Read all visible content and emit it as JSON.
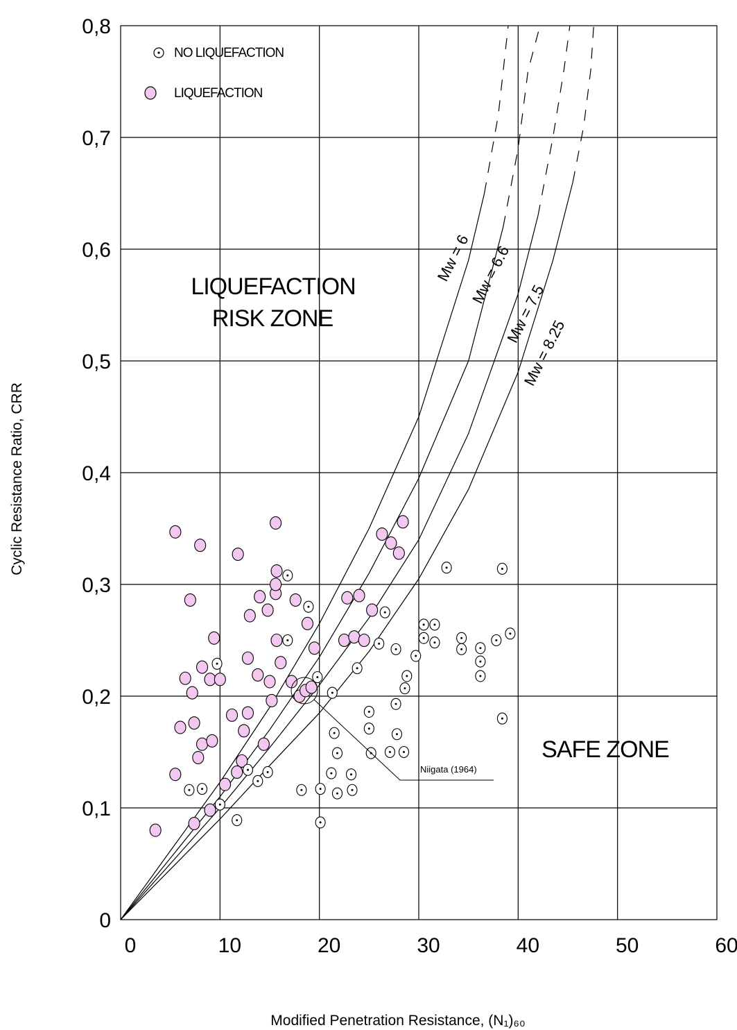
{
  "chart_data": {
    "type": "scatter",
    "xlabel": "Modified Penetration Resistance, (N₁)₆₀",
    "ylabel": "Cyclic Resistance Ratio, CRR",
    "xlim": [
      0,
      60
    ],
    "ylim": [
      0,
      0.8
    ],
    "xticks": [
      "0",
      "10",
      "20",
      "30",
      "40",
      "50",
      "60"
    ],
    "yticks": [
      "0",
      "0,1",
      "0,2",
      "0,3",
      "0,4",
      "0,5",
      "0,6",
      "0,7",
      "0,8"
    ],
    "grid": true,
    "legend": {
      "placement": "top-left",
      "entries": [
        "NO LIQUEFACTION",
        "LIQUEFACTION"
      ]
    },
    "zones": [
      "LIQUEFACTION",
      "RISK ZONE",
      "SAFE ZONE"
    ],
    "annotation": "Niigata (1964)",
    "colors": {
      "liquefaction_fill": "#f2c8f0",
      "line": "#000000"
    },
    "curves": [
      {
        "label": "Mw = 6",
        "points": [
          [
            0,
            0
          ],
          [
            10,
            0.123
          ],
          [
            15,
            0.19
          ],
          [
            20,
            0.265
          ],
          [
            25,
            0.35
          ],
          [
            30,
            0.45
          ],
          [
            35,
            0.59
          ],
          [
            36.6,
            0.65
          ]
        ],
        "dashed": [
          [
            36.6,
            0.65
          ],
          [
            38,
            0.72
          ],
          [
            39,
            0.8
          ]
        ]
      },
      {
        "label": "Mw = 6.6",
        "points": [
          [
            0,
            0
          ],
          [
            10,
            0.11
          ],
          [
            15,
            0.17
          ],
          [
            20,
            0.235
          ],
          [
            25,
            0.31
          ],
          [
            30,
            0.395
          ],
          [
            35,
            0.5
          ],
          [
            38.5,
            0.62
          ]
        ],
        "dashed": [
          [
            38.5,
            0.62
          ],
          [
            40,
            0.69
          ],
          [
            41,
            0.76
          ],
          [
            42.2,
            0.8
          ]
        ]
      },
      {
        "label": "Mw = 7.5",
        "points": [
          [
            0,
            0
          ],
          [
            10,
            0.1
          ],
          [
            15,
            0.154
          ],
          [
            20,
            0.21
          ],
          [
            25,
            0.27
          ],
          [
            30,
            0.34
          ],
          [
            35,
            0.435
          ],
          [
            40,
            0.56
          ],
          [
            42,
            0.63
          ]
        ],
        "dashed": [
          [
            42,
            0.63
          ],
          [
            43.5,
            0.7
          ],
          [
            44.6,
            0.76
          ],
          [
            45.2,
            0.8
          ]
        ]
      },
      {
        "label": "Mw = 8.25",
        "points": [
          [
            0,
            0
          ],
          [
            10,
            0.09
          ],
          [
            15,
            0.138
          ],
          [
            20,
            0.185
          ],
          [
            25,
            0.24
          ],
          [
            30,
            0.305
          ],
          [
            35,
            0.385
          ],
          [
            40,
            0.49
          ],
          [
            43.5,
            0.59
          ],
          [
            45.5,
            0.66
          ]
        ],
        "dashed": [
          [
            45.5,
            0.66
          ],
          [
            46.6,
            0.71
          ],
          [
            47.3,
            0.76
          ],
          [
            47.6,
            0.8
          ]
        ]
      }
    ],
    "series": [
      {
        "name": "LIQUEFACTION",
        "points": [
          [
            3.5,
            0.08
          ],
          [
            5.5,
            0.13
          ],
          [
            5.5,
            0.347
          ],
          [
            6,
            0.172
          ],
          [
            6.5,
            0.216
          ],
          [
            7,
            0.286
          ],
          [
            7.2,
            0.203
          ],
          [
            7.4,
            0.176
          ],
          [
            7.4,
            0.086
          ],
          [
            7.8,
            0.145
          ],
          [
            8,
            0.335
          ],
          [
            8.2,
            0.157
          ],
          [
            8.2,
            0.226
          ],
          [
            9,
            0.215
          ],
          [
            9,
            0.098
          ],
          [
            9.2,
            0.16
          ],
          [
            9.4,
            0.252
          ],
          [
            10,
            0.215
          ],
          [
            10.5,
            0.121
          ],
          [
            11.2,
            0.183
          ],
          [
            11.7,
            0.132
          ],
          [
            11.8,
            0.327
          ],
          [
            12.2,
            0.142
          ],
          [
            12.4,
            0.169
          ],
          [
            12.8,
            0.185
          ],
          [
            12.8,
            0.234
          ],
          [
            13,
            0.272
          ],
          [
            13.8,
            0.219
          ],
          [
            14,
            0.289
          ],
          [
            14.4,
            0.157
          ],
          [
            14.8,
            0.277
          ],
          [
            15,
            0.213
          ],
          [
            15.2,
            0.196
          ],
          [
            15.6,
            0.292
          ],
          [
            15.7,
            0.25
          ],
          [
            15.6,
            0.3
          ],
          [
            15.7,
            0.312
          ],
          [
            15.6,
            0.355
          ],
          [
            16.1,
            0.23
          ],
          [
            17.2,
            0.213
          ],
          [
            17.6,
            0.286
          ],
          [
            18,
            0.2
          ],
          [
            18.6,
            0.205
          ],
          [
            18.8,
            0.265
          ],
          [
            19.2,
            0.208
          ],
          [
            19.5,
            0.243
          ],
          [
            22.5,
            0.25
          ],
          [
            22.8,
            0.288
          ],
          [
            23.5,
            0.253
          ],
          [
            24,
            0.29
          ],
          [
            24.5,
            0.25
          ],
          [
            25.3,
            0.277
          ],
          [
            26.3,
            0.345
          ],
          [
            27.2,
            0.337
          ],
          [
            28,
            0.328
          ],
          [
            28.4,
            0.356
          ]
        ]
      },
      {
        "name": "NO LIQUEFACTION",
        "points": [
          [
            6.9,
            0.116
          ],
          [
            8.2,
            0.117
          ],
          [
            9.7,
            0.229
          ],
          [
            10,
            0.103
          ],
          [
            11.7,
            0.089
          ],
          [
            12.8,
            0.134
          ],
          [
            13.8,
            0.124
          ],
          [
            14.8,
            0.132
          ],
          [
            16.8,
            0.25
          ],
          [
            16.8,
            0.308
          ],
          [
            18.2,
            0.116
          ],
          [
            18.9,
            0.28
          ],
          [
            19.8,
            0.217
          ],
          [
            20.1,
            0.117
          ],
          [
            20.1,
            0.087
          ],
          [
            21.2,
            0.131
          ],
          [
            21.3,
            0.203
          ],
          [
            21.5,
            0.167
          ],
          [
            21.8,
            0.149
          ],
          [
            21.8,
            0.113
          ],
          [
            23.2,
            0.13
          ],
          [
            23.3,
            0.116
          ],
          [
            23.8,
            0.225
          ],
          [
            25,
            0.186
          ],
          [
            25,
            0.171
          ],
          [
            25.2,
            0.149
          ],
          [
            26,
            0.247
          ],
          [
            26.6,
            0.275
          ],
          [
            27.1,
            0.15
          ],
          [
            27.7,
            0.242
          ],
          [
            27.7,
            0.193
          ],
          [
            27.8,
            0.166
          ],
          [
            28.5,
            0.15
          ],
          [
            28.6,
            0.207
          ],
          [
            28.8,
            0.218
          ],
          [
            29.7,
            0.236
          ],
          [
            30.5,
            0.264
          ],
          [
            30.5,
            0.252
          ],
          [
            31.6,
            0.264
          ],
          [
            31.6,
            0.248
          ],
          [
            32.8,
            0.315
          ],
          [
            34.3,
            0.252
          ],
          [
            34.3,
            0.242
          ],
          [
            36.2,
            0.243
          ],
          [
            36.2,
            0.231
          ],
          [
            36.2,
            0.218
          ],
          [
            37.8,
            0.25
          ],
          [
            38.4,
            0.314
          ],
          [
            38.4,
            0.18
          ],
          [
            39.2,
            0.256
          ]
        ]
      }
    ]
  }
}
